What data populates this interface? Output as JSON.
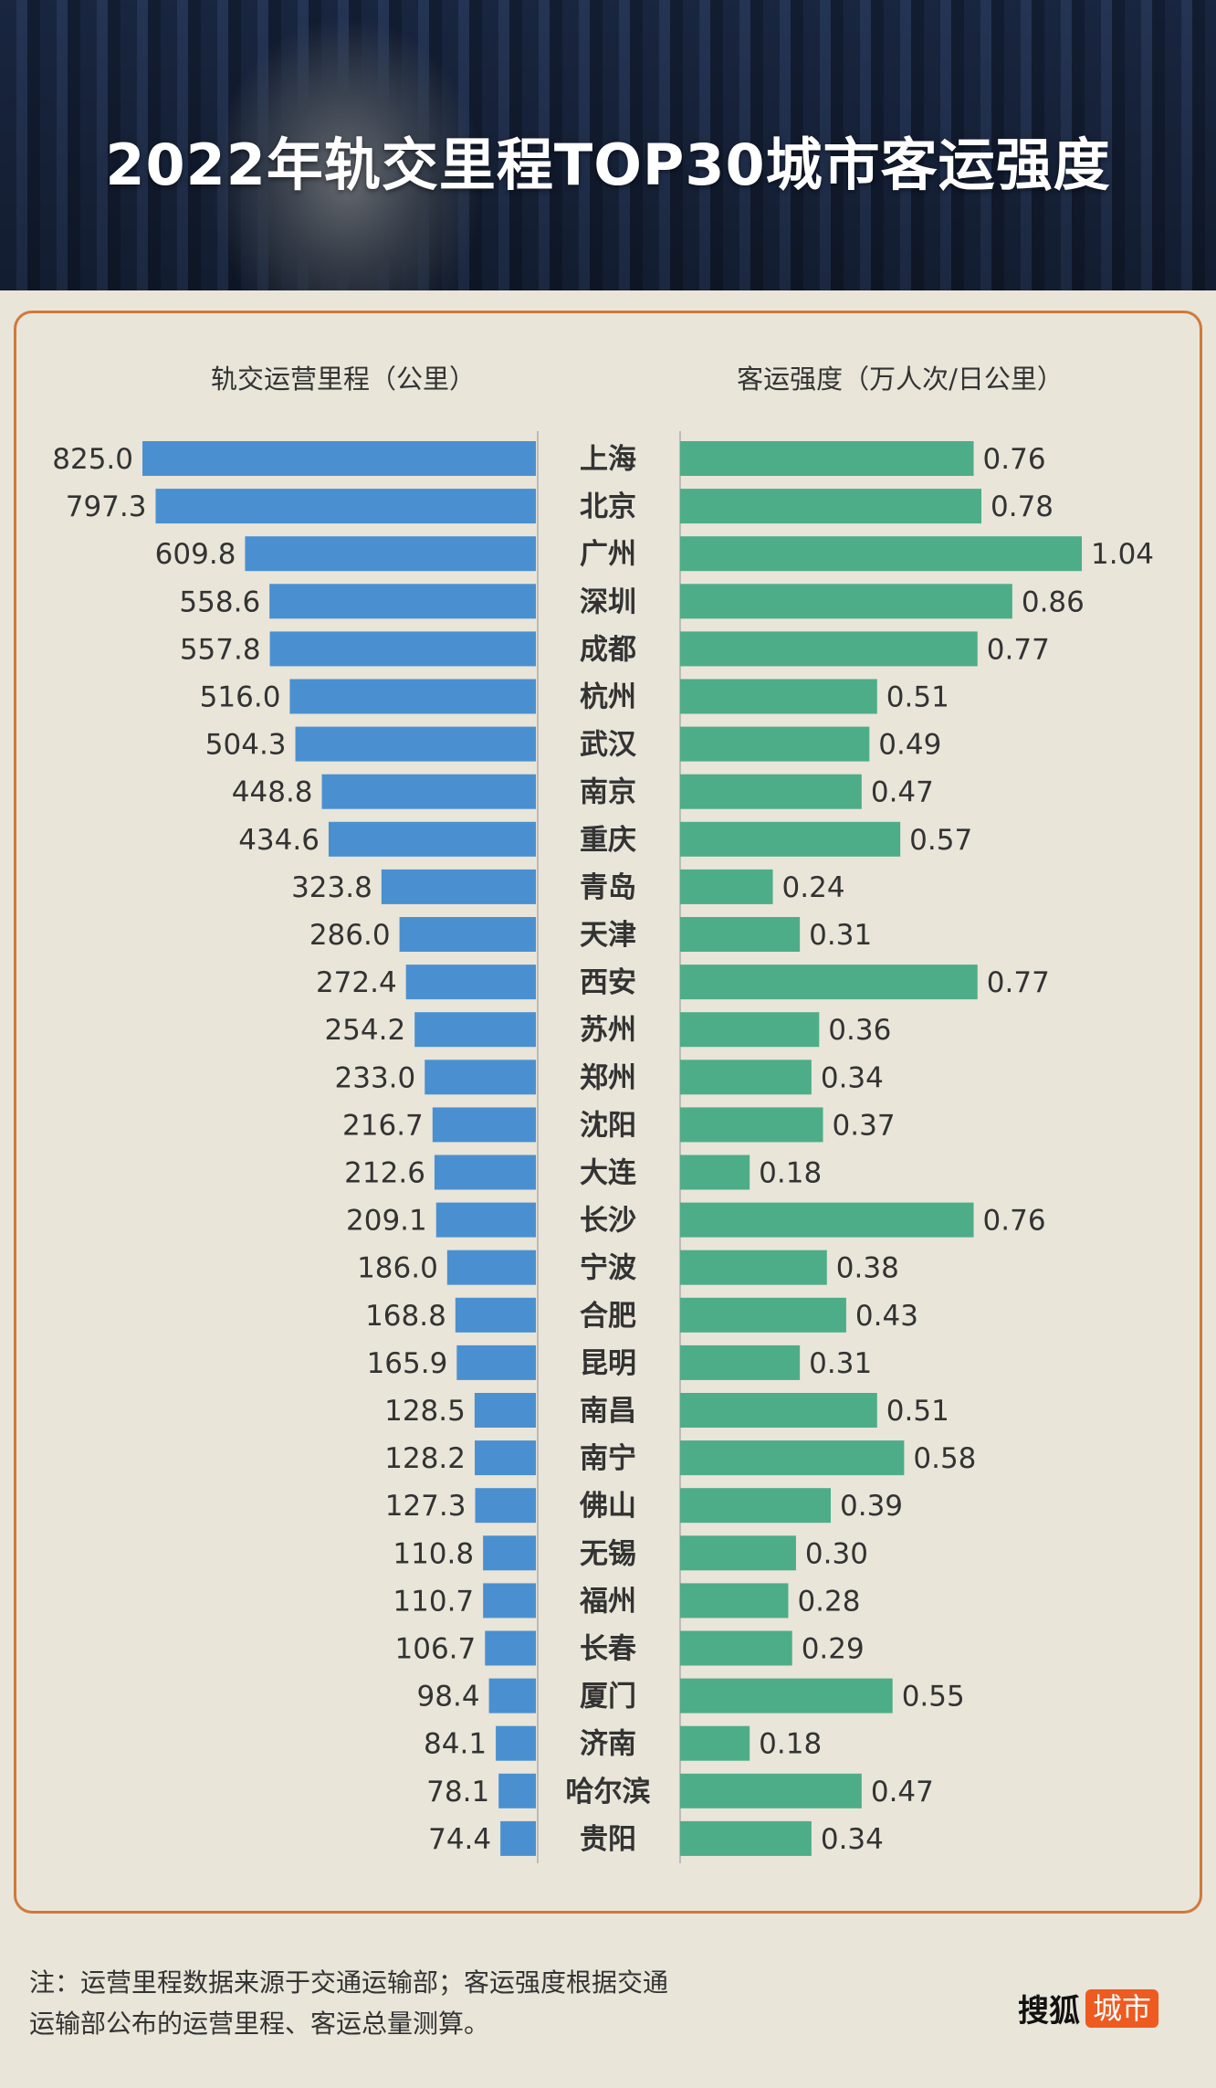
{
  "title": "2022年轨交里程TOP30城市客运强度",
  "chart_data": {
    "type": "bar",
    "left_header": "轨交运营里程（公里）",
    "right_header": "客运强度（万人次/日公里）",
    "categories": [
      "上海",
      "北京",
      "广州",
      "深圳",
      "成都",
      "杭州",
      "武汉",
      "南京",
      "重庆",
      "青岛",
      "天津",
      "西安",
      "苏州",
      "郑州",
      "沈阳",
      "大连",
      "长沙",
      "宁波",
      "合肥",
      "昆明",
      "南昌",
      "南宁",
      "佛山",
      "无锡",
      "福州",
      "长春",
      "厦门",
      "济南",
      "哈尔滨",
      "贵阳"
    ],
    "series": [
      {
        "name": "轨交运营里程（公里）",
        "color": "#4a90d0",
        "values": [
          825.0,
          797.3,
          609.8,
          558.6,
          557.8,
          516.0,
          504.3,
          448.8,
          434.6,
          323.8,
          286.0,
          272.4,
          254.2,
          233.0,
          216.7,
          212.6,
          209.1,
          186.0,
          168.8,
          165.9,
          128.5,
          128.2,
          127.3,
          110.8,
          110.7,
          106.7,
          98.4,
          84.1,
          78.1,
          74.4
        ]
      },
      {
        "name": "客运强度（万人次/日公里）",
        "color": "#4dad88",
        "values": [
          0.76,
          0.78,
          1.04,
          0.86,
          0.77,
          0.51,
          0.49,
          0.47,
          0.57,
          0.24,
          0.31,
          0.77,
          0.36,
          0.34,
          0.37,
          0.18,
          0.76,
          0.38,
          0.43,
          0.31,
          0.51,
          0.58,
          0.39,
          0.3,
          0.28,
          0.29,
          0.55,
          0.18,
          0.47,
          0.34
        ]
      }
    ],
    "left_decimals": 1,
    "right_decimals": 2
  },
  "note": "注：运营里程数据来源于交通运输部；客运强度根据交通运输部公布的运营里程、客运总量测算。",
  "logo": {
    "text": "搜狐",
    "badge": "城市"
  }
}
